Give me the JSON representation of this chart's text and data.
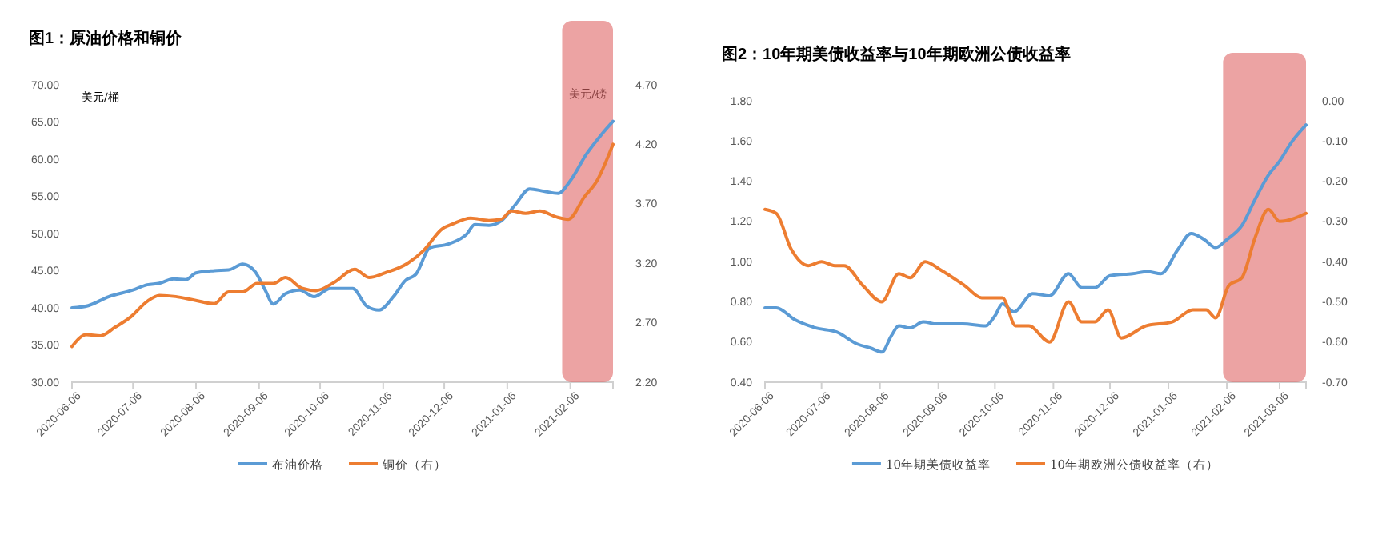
{
  "chart_data": [
    {
      "type": "line",
      "title": "图1：原油价格和铜价",
      "ylabel": "美元/桶",
      "y2label": "美元/磅",
      "legend": "bottom",
      "grid": false,
      "xlim": [
        "2020-06-06",
        "2021-02-27"
      ],
      "xticks": [
        "2020-06-06",
        "2020-07-06",
        "2020-08-06",
        "2020-09-06",
        "2020-10-06",
        "2020-11-06",
        "2020-12-06",
        "2021-01-06",
        "2021-02-06"
      ],
      "ylim": [
        30,
        70
      ],
      "yticks": [
        {
          "value": 30,
          "label": "30.00"
        },
        {
          "value": 35,
          "label": "35.00"
        },
        {
          "value": 40,
          "label": "40.00"
        },
        {
          "value": 45,
          "label": "45.00"
        },
        {
          "value": 50,
          "label": "50.00"
        },
        {
          "value": 55,
          "label": "55.00"
        },
        {
          "value": 60,
          "label": "60.00"
        },
        {
          "value": 65,
          "label": "65.00"
        },
        {
          "value": 70,
          "label": "70.00"
        }
      ],
      "y2lim": [
        2.2,
        4.7
      ],
      "y2ticks": [
        {
          "value": 2.2,
          "label": "2.20"
        },
        {
          "value": 2.7,
          "label": "2.70"
        },
        {
          "value": 3.2,
          "label": "3.20"
        },
        {
          "value": 3.7,
          "label": "3.70"
        },
        {
          "value": 4.2,
          "label": "4.20"
        },
        {
          "value": 4.7,
          "label": "4.70"
        }
      ],
      "bands": [
        {
          "axis": "x",
          "from": "2021-02-02",
          "to": "2021-02-27",
          "color": "#e06666"
        }
      ],
      "series": [
        {
          "name": "布油价格",
          "color": "#5b9bd5",
          "x": [
            "2020-06-06",
            "2020-06-14",
            "2020-06-24",
            "2020-07-06",
            "2020-07-13",
            "2020-07-19",
            "2020-07-26",
            "2020-08-01",
            "2020-08-06",
            "2020-08-15",
            "2020-08-22",
            "2020-08-29",
            "2020-09-04",
            "2020-09-09",
            "2020-09-13",
            "2020-09-19",
            "2020-09-26",
            "2020-10-03",
            "2020-10-11",
            "2020-10-22",
            "2020-10-29",
            "2020-11-04",
            "2020-11-11",
            "2020-11-17",
            "2020-11-22",
            "2020-11-29",
            "2020-12-08",
            "2020-12-17",
            "2020-12-21",
            "2020-12-28",
            "2021-01-03",
            "2021-01-10",
            "2021-01-17",
            "2021-01-24",
            "2021-01-31",
            "2021-02-06",
            "2021-02-14",
            "2021-02-21",
            "2021-02-27"
          ],
          "values": [
            40.0,
            40.3,
            41.5,
            42.4,
            43.1,
            43.3,
            43.9,
            43.8,
            44.7,
            45.0,
            45.1,
            45.9,
            44.9,
            42.4,
            40.5,
            41.9,
            42.4,
            41.5,
            42.6,
            42.6,
            40.2,
            39.7,
            41.5,
            43.7,
            44.5,
            48.1,
            48.6,
            49.9,
            51.2,
            51.1,
            51.7,
            53.9,
            56.0,
            55.7,
            55.4,
            57.1,
            60.7,
            63.2,
            65.1
          ]
        },
        {
          "name": "铜价（右）",
          "color": "#ed7d31",
          "axis": "y2",
          "x": [
            "2020-06-06",
            "2020-06-13",
            "2020-06-20",
            "2020-06-27",
            "2020-07-05",
            "2020-07-13",
            "2020-07-19",
            "2020-07-27",
            "2020-08-05",
            "2020-08-15",
            "2020-08-22",
            "2020-08-29",
            "2020-09-05",
            "2020-09-13",
            "2020-09-19",
            "2020-09-27",
            "2020-10-04",
            "2020-10-13",
            "2020-10-23",
            "2020-10-30",
            "2020-11-07",
            "2020-11-18",
            "2020-11-26",
            "2020-12-05",
            "2020-12-10",
            "2020-12-19",
            "2020-12-28",
            "2021-01-03",
            "2021-01-08",
            "2021-01-15",
            "2021-01-22",
            "2021-01-30",
            "2021-02-05",
            "2021-02-13",
            "2021-02-19",
            "2021-02-27"
          ],
          "values": [
            2.5,
            2.6,
            2.59,
            2.66,
            2.75,
            2.88,
            2.93,
            2.92,
            2.89,
            2.86,
            2.96,
            2.96,
            3.03,
            3.03,
            3.08,
            2.99,
            2.97,
            3.04,
            3.15,
            3.08,
            3.12,
            3.2,
            3.31,
            3.49,
            3.53,
            3.58,
            3.56,
            3.57,
            3.64,
            3.62,
            3.64,
            3.59,
            3.57,
            3.76,
            3.89,
            4.2
          ]
        }
      ]
    },
    {
      "type": "line",
      "title": "图2：10年期美债收益率与10年期欧洲公债收益率",
      "legend": "bottom",
      "grid": false,
      "xlim": [
        "2020-06-06",
        "2021-03-20"
      ],
      "xticks": [
        "2020-06-06",
        "2020-07-06",
        "2020-08-06",
        "2020-09-06",
        "2020-10-06",
        "2020-11-06",
        "2020-12-06",
        "2021-01-06",
        "2021-02-06",
        "2021-03-06"
      ],
      "ylim": [
        0.4,
        1.8
      ],
      "yticks": [
        {
          "value": 0.4,
          "label": "0.40"
        },
        {
          "value": 0.6,
          "label": "0.60"
        },
        {
          "value": 0.8,
          "label": "0.80"
        },
        {
          "value": 1.0,
          "label": "1.00"
        },
        {
          "value": 1.2,
          "label": "1.20"
        },
        {
          "value": 1.4,
          "label": "1.40"
        },
        {
          "value": 1.6,
          "label": "1.60"
        },
        {
          "value": 1.8,
          "label": "1.80"
        }
      ],
      "y2lim": [
        -0.7,
        0
      ],
      "y2ticks": [
        {
          "value": -0.7,
          "label": "-0.70"
        },
        {
          "value": -0.6,
          "label": "-0.60"
        },
        {
          "value": -0.5,
          "label": "-0.50"
        },
        {
          "value": -0.4,
          "label": "-0.40"
        },
        {
          "value": -0.3,
          "label": "-0.30"
        },
        {
          "value": -0.2,
          "label": "-0.20"
        },
        {
          "value": -0.1,
          "label": "-0.10"
        },
        {
          "value": 0,
          "label": "0.00"
        }
      ],
      "bands": [
        {
          "axis": "x",
          "from": "2021-02-04",
          "to": "2021-03-20",
          "color": "#e06666"
        }
      ],
      "series": [
        {
          "name": "10年期美债收益率",
          "color": "#5b9bd5",
          "x": [
            "2020-06-06",
            "2020-06-12",
            "2020-06-22",
            "2020-07-03",
            "2020-07-14",
            "2020-07-25",
            "2020-08-01",
            "2020-08-07",
            "2020-08-12",
            "2020-08-16",
            "2020-08-22",
            "2020-08-29",
            "2020-09-05",
            "2020-09-19",
            "2020-10-01",
            "2020-10-06",
            "2020-10-10",
            "2020-10-16",
            "2020-10-26",
            "2020-11-04",
            "2020-11-14",
            "2020-11-21",
            "2020-11-28",
            "2020-12-06",
            "2020-12-18",
            "2020-12-26",
            "2021-01-02",
            "2021-01-11",
            "2021-01-18",
            "2021-01-25",
            "2021-01-31",
            "2021-02-06",
            "2021-02-14",
            "2021-02-21",
            "2021-02-28",
            "2021-03-06",
            "2021-03-12",
            "2021-03-20"
          ],
          "values": [
            0.77,
            0.77,
            0.71,
            0.67,
            0.65,
            0.59,
            0.57,
            0.55,
            0.63,
            0.68,
            0.67,
            0.7,
            0.69,
            0.69,
            0.68,
            0.73,
            0.79,
            0.75,
            0.84,
            0.83,
            0.94,
            0.87,
            0.87,
            0.93,
            0.94,
            0.95,
            0.94,
            1.06,
            1.14,
            1.11,
            1.07,
            1.11,
            1.18,
            1.31,
            1.43,
            1.5,
            1.59,
            1.68
          ]
        },
        {
          "name": "10年期欧洲公债收益率（右）",
          "color": "#ed7d31",
          "axis": "y2",
          "x": [
            "2020-06-06",
            "2020-06-12",
            "2020-06-20",
            "2020-06-29",
            "2020-07-06",
            "2020-07-13",
            "2020-07-18",
            "2020-07-28",
            "2020-08-07",
            "2020-08-16",
            "2020-08-22",
            "2020-08-30",
            "2020-09-07",
            "2020-09-20",
            "2020-09-29",
            "2020-10-05",
            "2020-10-10",
            "2020-10-17",
            "2020-10-24",
            "2020-11-04",
            "2020-11-14",
            "2020-11-21",
            "2020-11-28",
            "2020-12-05",
            "2020-12-12",
            "2020-12-25",
            "2021-01-08",
            "2021-01-19",
            "2021-01-26",
            "2021-01-31",
            "2021-02-07",
            "2021-02-14",
            "2021-02-21",
            "2021-02-28",
            "2021-03-06",
            "2021-03-20"
          ],
          "values": [
            -0.27,
            -0.28,
            -0.37,
            -0.41,
            -0.4,
            -0.41,
            -0.41,
            -0.46,
            -0.5,
            -0.43,
            -0.44,
            -0.4,
            -0.42,
            -0.46,
            -0.49,
            -0.49,
            -0.49,
            -0.56,
            -0.56,
            -0.6,
            -0.5,
            -0.55,
            -0.55,
            -0.52,
            -0.59,
            -0.56,
            -0.55,
            -0.52,
            -0.52,
            -0.54,
            -0.46,
            -0.44,
            -0.34,
            -0.27,
            -0.3,
            -0.28
          ]
        }
      ]
    }
  ]
}
